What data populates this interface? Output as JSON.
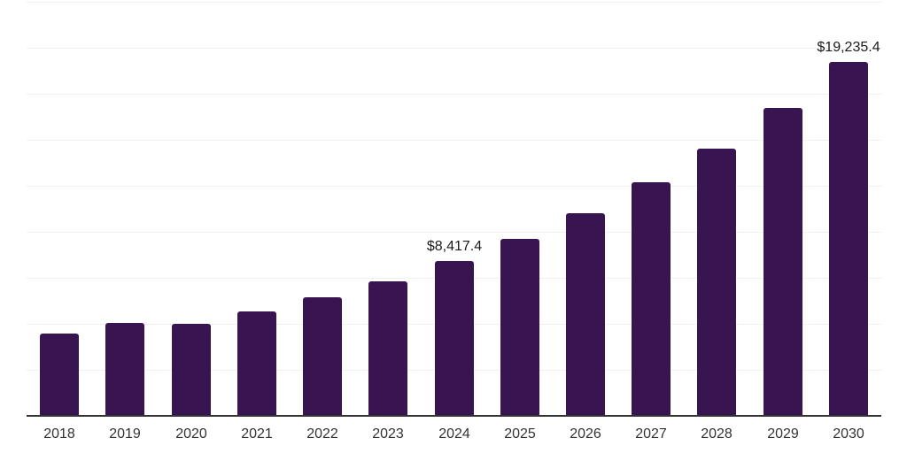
{
  "chart_data": {
    "type": "bar",
    "title": "",
    "xlabel": "",
    "ylabel": "",
    "categories": [
      "2018",
      "2019",
      "2020",
      "2021",
      "2022",
      "2023",
      "2024",
      "2025",
      "2026",
      "2027",
      "2028",
      "2029",
      "2030"
    ],
    "values": [
      4460,
      5050,
      4990,
      5670,
      6460,
      7320,
      8417.4,
      9620,
      11030,
      12710,
      14540,
      16730,
      19235.4
    ],
    "value_labels": [
      null,
      null,
      null,
      null,
      null,
      null,
      "$8,417.4",
      null,
      null,
      null,
      null,
      null,
      "$19,235.4"
    ],
    "ylim": [
      0,
      22500
    ],
    "gridline_step": 2500,
    "grid": true,
    "legend": false,
    "y_tick_labels_visible": false,
    "colors": {
      "bar": "#381450",
      "axis_line": "#333333",
      "gridline": "#f0f0f0",
      "tick_label": "#333333",
      "value_label": "#1a1a1a",
      "background": "#ffffff"
    }
  }
}
